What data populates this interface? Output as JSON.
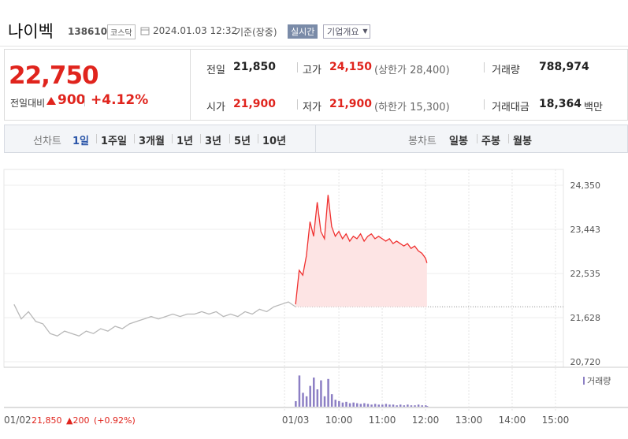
{
  "header": {
    "name": "나이벡",
    "code": "138610",
    "market": "코스닥",
    "datetime": "2024.01.03 12:32",
    "status": "기준(장중)",
    "realtime_button": "실시간",
    "company_button": "기업개요"
  },
  "quote": {
    "price": "22,750",
    "change_label": "전일대비",
    "change": "900",
    "rate": "+4.12%"
  },
  "stats": [
    [
      {
        "label": "전일",
        "value": "21,850"
      },
      {
        "label": "고가",
        "value": "24,150",
        "sub": "(상한가 28,400)"
      },
      {
        "label": "거래량",
        "value": "788,974"
      }
    ],
    [
      {
        "label": "시가",
        "value": "21,900"
      },
      {
        "label": "저가",
        "value": "21,900",
        "sub": "(하한가 15,300)"
      },
      {
        "label": "거래대금",
        "value": "18,364",
        "unit": "백만"
      }
    ]
  ],
  "tabs": {
    "line_label": "선차트",
    "line_items": [
      "1일",
      "1주일",
      "3개월",
      "1년",
      "3년",
      "5년",
      "10년"
    ],
    "candle_label": "봉차트",
    "candle_items": [
      "일봉",
      "주봉",
      "월봉"
    ]
  },
  "chart_data": {
    "type": "line",
    "xlim": [
      -14,
      761
    ],
    "xticks": [
      {
        "value": 0,
        "label": "01/02"
      },
      {
        "value": 390,
        "label": "01/03"
      },
      {
        "value": 450,
        "label": "10:00"
      },
      {
        "value": 510,
        "label": "11:00"
      },
      {
        "value": 570,
        "label": "12:00"
      },
      {
        "value": 630,
        "label": "13:00"
      },
      {
        "value": 690,
        "label": "14:00"
      },
      {
        "value": 750,
        "label": "15:00"
      }
    ],
    "ylim": [
      20720,
      24350
    ],
    "yticks": [
      {
        "value": 24350,
        "label": "24,350"
      },
      {
        "value": 23443,
        "label": "23,443"
      },
      {
        "value": 22535,
        "label": "22,535"
      },
      {
        "value": 21628,
        "label": "21,628"
      },
      {
        "value": 20720,
        "label": "20,720"
      }
    ],
    "baseline": 21850,
    "prev_caption": {
      "close": "21,850",
      "change": "▲200",
      "rate": "(+0.92%)"
    },
    "series": [
      {
        "color": "#b8b8b8",
        "x": [
          0,
          10,
          20,
          30,
          40,
          50,
          60,
          70,
          80,
          90,
          100,
          110,
          120,
          130,
          140,
          150,
          160,
          170,
          180,
          190,
          200,
          210,
          220,
          230,
          240,
          250,
          260,
          270,
          280,
          290,
          300,
          310,
          320,
          330,
          340,
          350,
          360,
          370,
          380,
          390
        ],
        "values": [
          21900,
          21600,
          21750,
          21550,
          21500,
          21300,
          21250,
          21350,
          21300,
          21250,
          21350,
          21300,
          21400,
          21350,
          21450,
          21400,
          21500,
          21550,
          21600,
          21650,
          21600,
          21650,
          21700,
          21650,
          21700,
          21700,
          21750,
          21700,
          21750,
          21650,
          21700,
          21650,
          21750,
          21700,
          21800,
          21750,
          21850,
          21900,
          21950,
          21850
        ]
      },
      {
        "color": "#f0302f",
        "fill": "#fde4e4",
        "x": [
          390,
          395,
          400,
          405,
          410,
          415,
          420,
          425,
          430,
          435,
          440,
          445,
          450,
          455,
          460,
          465,
          470,
          475,
          480,
          485,
          490,
          495,
          500,
          505,
          510,
          515,
          520,
          525,
          530,
          535,
          540,
          545,
          550,
          555,
          560,
          565,
          570,
          572
        ],
        "values": [
          21900,
          22600,
          22500,
          22900,
          23600,
          23300,
          24000,
          23400,
          23250,
          24150,
          23500,
          23300,
          23400,
          23250,
          23350,
          23200,
          23300,
          23250,
          23350,
          23200,
          23300,
          23350,
          23250,
          23300,
          23250,
          23200,
          23250,
          23150,
          23200,
          23150,
          23100,
          23150,
          23050,
          23100,
          23000,
          22950,
          22850,
          22750
        ]
      }
    ],
    "volume": {
      "name": "거래량",
      "color": "#8c7fc4",
      "vlim": [
        0,
        50000
      ],
      "values": [
        8000,
        45000,
        20000,
        15000,
        30000,
        42000,
        25000,
        38000,
        15000,
        40000,
        18000,
        10000,
        8000,
        6000,
        7000,
        5000,
        6000,
        5000,
        4000,
        5000,
        4000,
        3000,
        4000,
        3000,
        3000,
        4000,
        3000,
        3000,
        2000,
        3000,
        2000,
        3000,
        2000,
        2000,
        3000,
        2000,
        2000,
        1000
      ]
    }
  }
}
